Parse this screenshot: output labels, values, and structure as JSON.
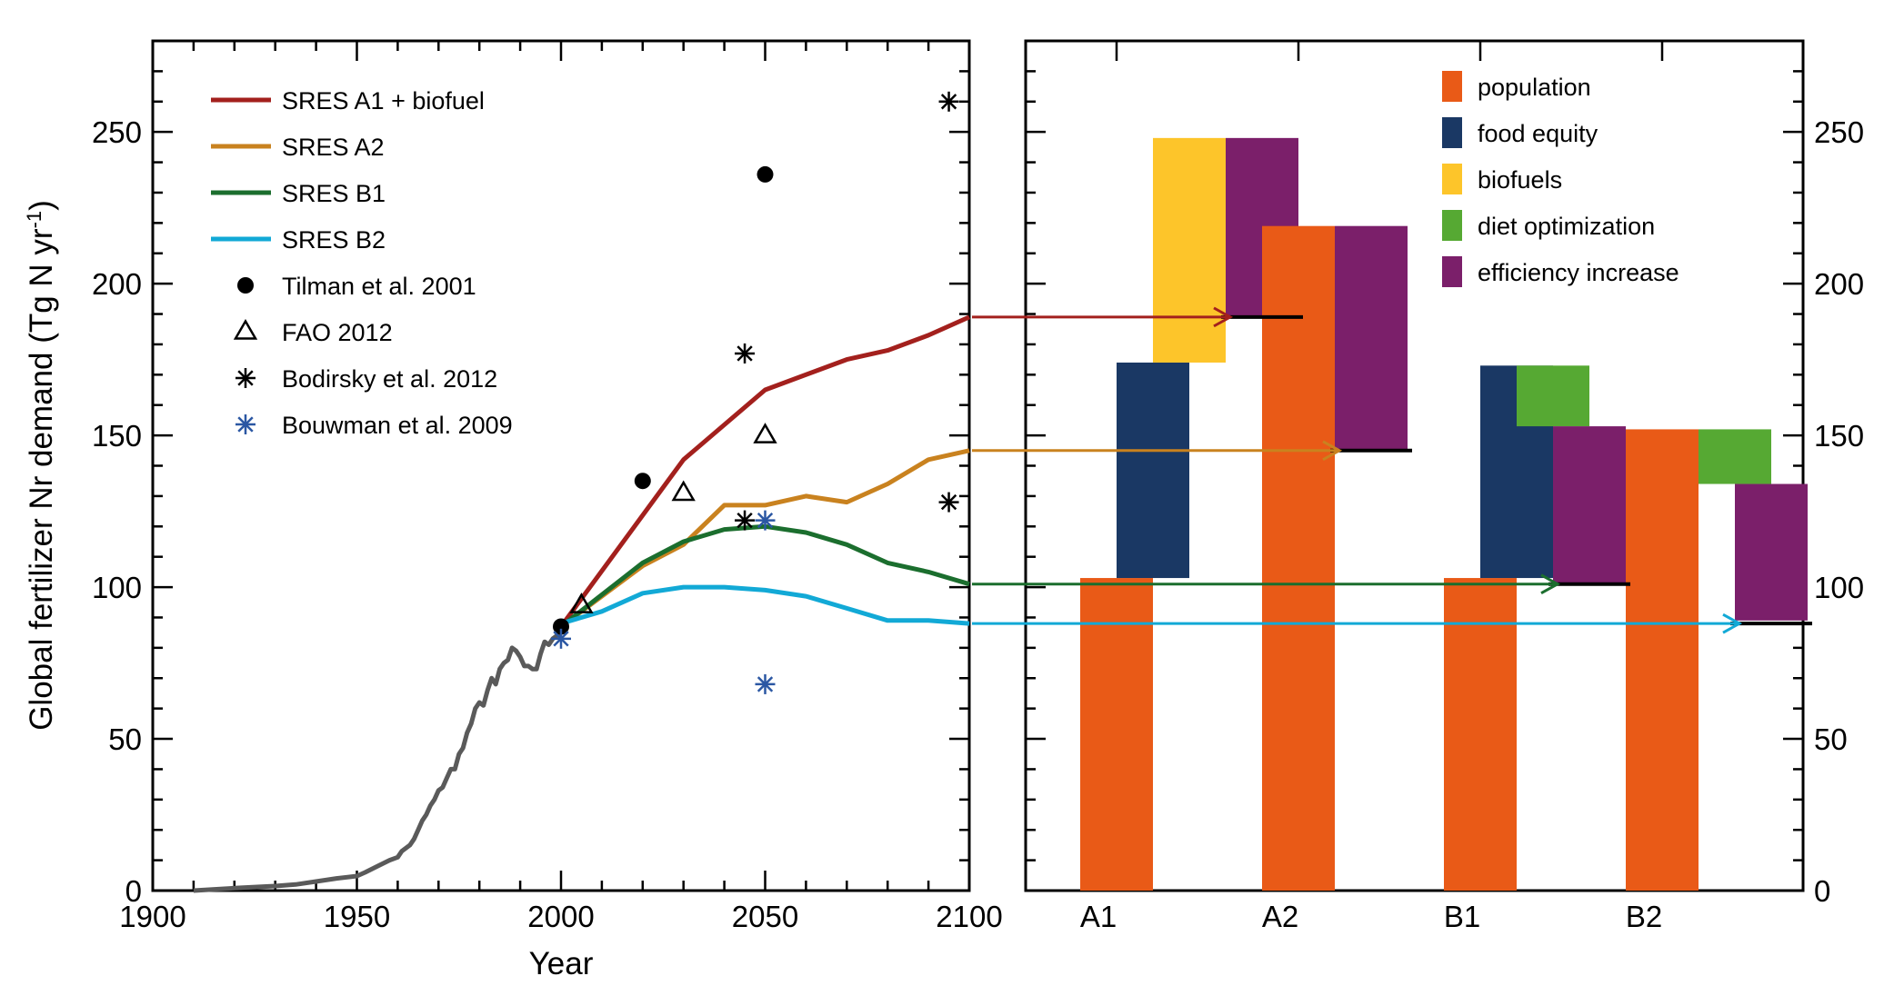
{
  "chart_data": [
    {
      "type": "line",
      "xlabel": "Year",
      "ylabel": "Global fertilizer Nr demand (Tg N yr",
      "ylabel_sup": "-1",
      "ylabel_close": ")",
      "xlim": [
        1900,
        2100
      ],
      "ylim": [
        0,
        280
      ],
      "xticks": [
        1900,
        1950,
        2000,
        2050,
        2100
      ],
      "yticks": [
        0,
        50,
        100,
        150,
        200,
        250
      ],
      "legend_position": "top-left",
      "series": [
        {
          "name": "",
          "color": "#5a5a5a",
          "x": [
            1910,
            1920,
            1930,
            1935,
            1940,
            1945,
            1950,
            1952,
            1955,
            1958,
            1960,
            1961,
            1963,
            1964,
            1965,
            1966,
            1967,
            1968,
            1969,
            1970,
            1971,
            1972,
            1973,
            1974,
            1975,
            1976,
            1977,
            1978,
            1979,
            1980,
            1981,
            1982,
            1983,
            1984,
            1985,
            1986,
            1987,
            1988,
            1989,
            1990,
            1991,
            1992,
            1993,
            1994,
            1995,
            1996,
            1997,
            1998,
            1999,
            2000
          ],
          "y": [
            0,
            0.8,
            1.5,
            2,
            3,
            4,
            4.8,
            6,
            8,
            10,
            11,
            13,
            15,
            17,
            20,
            23,
            25,
            28,
            30,
            33,
            34,
            37,
            40,
            40,
            45,
            47,
            52,
            55,
            60,
            62,
            61,
            66,
            70,
            68,
            73,
            75,
            76,
            80,
            79,
            77,
            74,
            74,
            73,
            73,
            78,
            82,
            81,
            83,
            84,
            85
          ]
        },
        {
          "name": "SRES A1 + biofuel",
          "color": "#a3201d",
          "x": [
            2000,
            2030,
            2050,
            2070,
            2080,
            2090,
            2100
          ],
          "y": [
            87,
            142,
            165,
            175,
            178,
            183,
            189
          ]
        },
        {
          "name": "SRES A2",
          "color": "#c9821f",
          "x": [
            2000,
            2020,
            2030,
            2040,
            2050,
            2060,
            2070,
            2080,
            2090,
            2100
          ],
          "y": [
            87,
            107,
            114,
            127,
            127,
            130,
            128,
            134,
            142,
            145
          ]
        },
        {
          "name": "SRES B1",
          "color": "#1b6e2e",
          "x": [
            2000,
            2020,
            2030,
            2040,
            2050,
            2060,
            2070,
            2080,
            2090,
            2100
          ],
          "y": [
            87,
            108,
            115,
            119,
            120,
            118,
            114,
            108,
            105,
            101
          ]
        },
        {
          "name": "SRES B2",
          "color": "#12a9d6",
          "x": [
            2000,
            2010,
            2020,
            2030,
            2040,
            2050,
            2060,
            2070,
            2080,
            2090,
            2100
          ],
          "y": [
            88,
            92,
            98,
            100,
            100,
            99,
            97,
            93,
            89,
            89,
            88
          ]
        }
      ],
      "markers": [
        {
          "name": "Tilman et al. 2001",
          "symbol": "dot",
          "color": "#000000",
          "points": [
            [
              2000,
              87
            ],
            [
              2020,
              135
            ],
            [
              2050,
              236
            ]
          ]
        },
        {
          "name": "FAO 2012",
          "symbol": "triangle",
          "color": "#000000",
          "points": [
            [
              2005,
              94
            ],
            [
              2030,
              131
            ],
            [
              2050,
              150
            ]
          ]
        },
        {
          "name": "Bodirsky et al. 2012",
          "symbol": "asterisk",
          "color": "#000000",
          "points": [
            [
              2045,
              177
            ],
            [
              2045,
              122
            ],
            [
              2095,
              260
            ],
            [
              2095,
              128
            ]
          ]
        },
        {
          "name": "Bouwman et al. 2009",
          "symbol": "asterisk",
          "color": "#2b57a3",
          "points": [
            [
              2000,
              83
            ],
            [
              2050,
              122
            ],
            [
              2050,
              68
            ]
          ]
        }
      ]
    },
    {
      "type": "bar",
      "categories": [
        "A1",
        "A2",
        "B1",
        "B2"
      ],
      "ylim": [
        0,
        280
      ],
      "yticks": [
        0,
        50,
        100,
        150,
        200,
        250
      ],
      "legend_position": "top-right",
      "components": [
        {
          "name": "population",
          "color": "#e95a17"
        },
        {
          "name": "food equity",
          "color": "#1a3864"
        },
        {
          "name": "biofuels",
          "color": "#fdc52a"
        },
        {
          "name": "diet optimization",
          "color": "#56a933"
        },
        {
          "name": "efficiency increase",
          "color": "#7b1f6a"
        }
      ],
      "segments": [
        {
          "category": "A1",
          "slot": 0,
          "component": "population",
          "from": 0,
          "to": 103
        },
        {
          "category": "A1",
          "slot": 0.5,
          "component": "food equity",
          "from": 103,
          "to": 174
        },
        {
          "category": "A1",
          "slot": 1,
          "component": "biofuels",
          "from": 174,
          "to": 248
        },
        {
          "category": "A1",
          "slot": 2,
          "component": "efficiency increase",
          "from": 189,
          "to": 248
        },
        {
          "category": "A2",
          "slot": 0,
          "component": "population",
          "from": 0,
          "to": 219
        },
        {
          "category": "A2",
          "slot": 1,
          "component": "efficiency increase",
          "from": 145,
          "to": 219
        },
        {
          "category": "B1",
          "slot": 0,
          "component": "population",
          "from": 0,
          "to": 103
        },
        {
          "category": "B1",
          "slot": 0.5,
          "component": "food equity",
          "from": 103,
          "to": 173
        },
        {
          "category": "B1",
          "slot": 1,
          "component": "diet optimization",
          "from": 153,
          "to": 173
        },
        {
          "category": "B1",
          "slot": 1.5,
          "component": "efficiency increase",
          "from": 101,
          "to": 153
        },
        {
          "category": "B2",
          "slot": 0,
          "component": "population",
          "from": 0,
          "to": 152
        },
        {
          "category": "B2",
          "slot": 1,
          "component": "diet optimization",
          "from": 134,
          "to": 152
        },
        {
          "category": "B2",
          "slot": 1.5,
          "component": "efficiency increase",
          "from": 89,
          "to": 134
        }
      ],
      "final_values": [
        {
          "category": "A1",
          "value": 189
        },
        {
          "category": "A2",
          "value": 145
        },
        {
          "category": "B1",
          "value": 101
        },
        {
          "category": "B2",
          "value": 88
        }
      ],
      "arrows": [
        {
          "from_series": "SRES A1 + biofuel",
          "to_category": "A1",
          "value": 189,
          "color": "#a3201d"
        },
        {
          "from_series": "SRES A2",
          "to_category": "A2",
          "value": 145,
          "color": "#c9821f"
        },
        {
          "from_series": "SRES B1",
          "to_category": "B1",
          "value": 101,
          "color": "#1b6e2e"
        },
        {
          "from_series": "SRES B2",
          "to_category": "B2",
          "value": 88,
          "color": "#12a9d6"
        }
      ]
    }
  ]
}
